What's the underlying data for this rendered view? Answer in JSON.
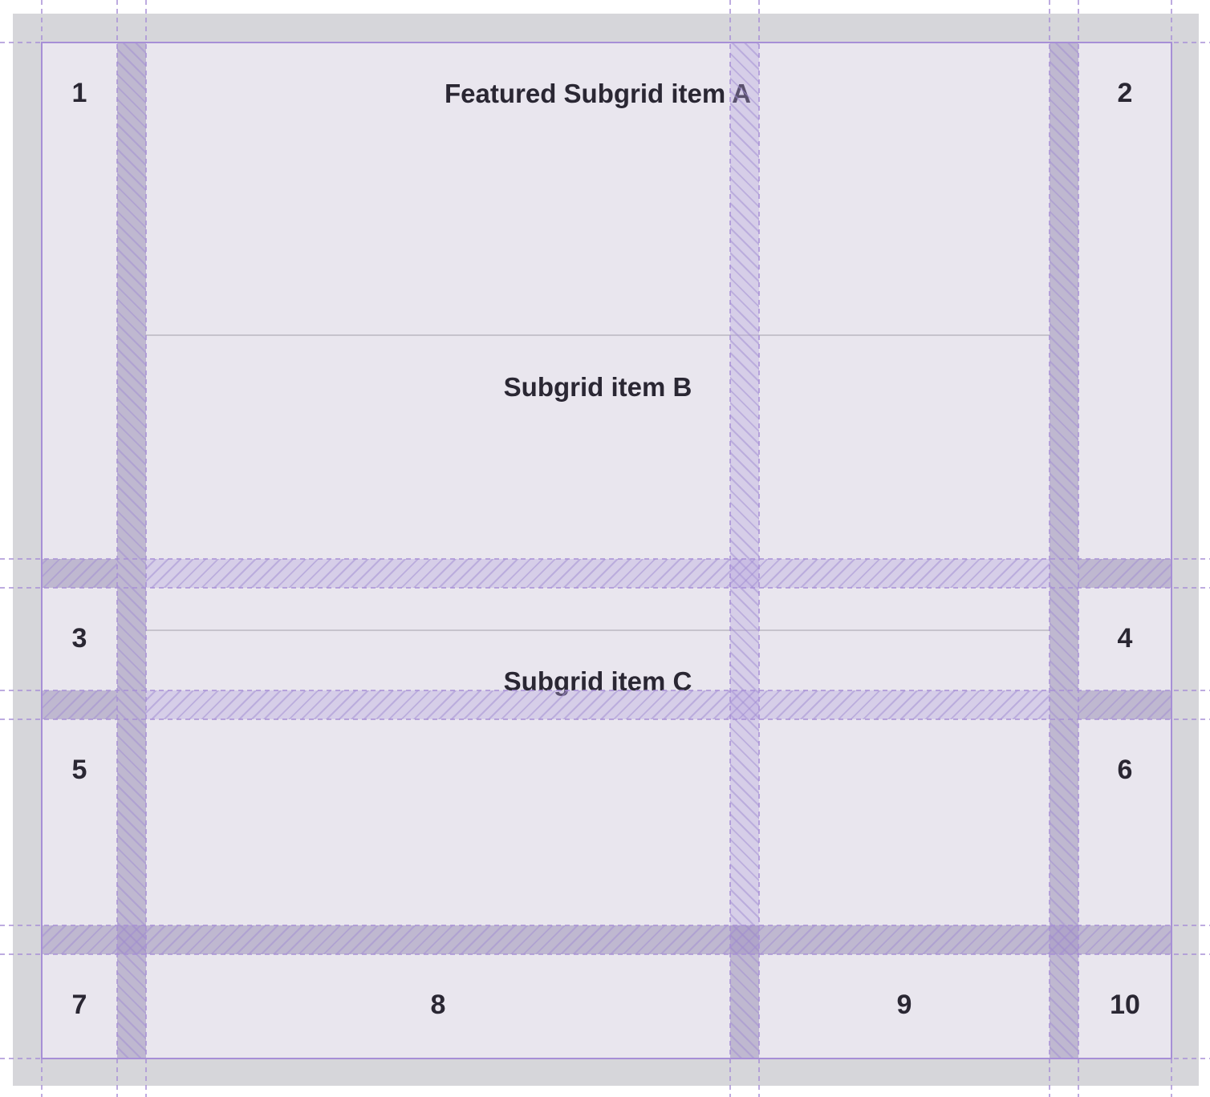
{
  "grid_items": [
    "1",
    "2",
    "3",
    "4",
    "5",
    "6",
    "7",
    "8",
    "9",
    "10"
  ],
  "subgrid_items": [
    "Featured Subgrid item A",
    "Subgrid item B",
    "Subgrid item C"
  ],
  "colors": {
    "grid_line": "#a78fd6",
    "cell_bg": "#e9e6ee",
    "page_bg": "#d6d6da",
    "text": "#2a2733"
  }
}
